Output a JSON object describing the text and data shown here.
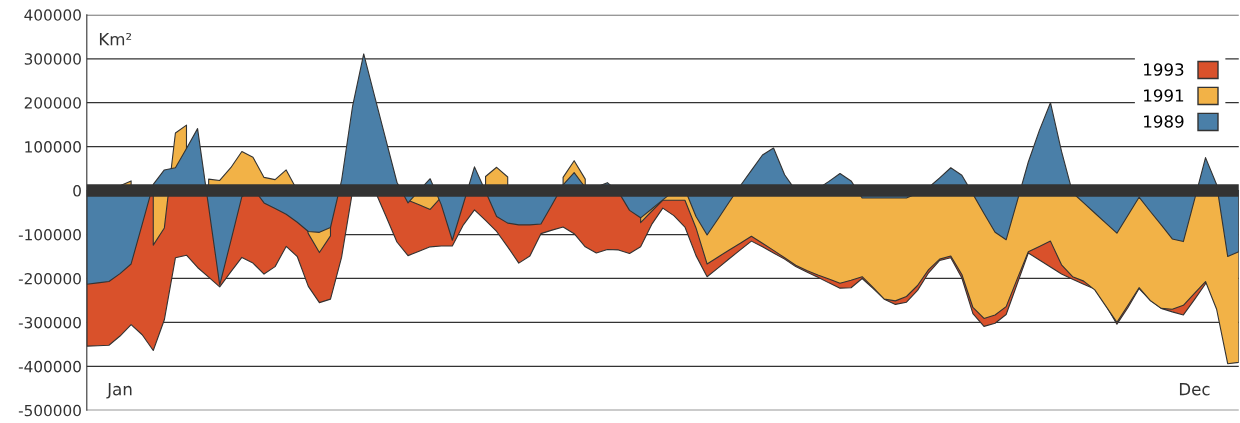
{
  "chart_data": {
    "type": "area",
    "ylabel": "Km²",
    "categories": [
      null,
      null,
      null,
      "Jan",
      null,
      null,
      null,
      null,
      null,
      null,
      null,
      null,
      null,
      null,
      null,
      null,
      null,
      null,
      null,
      null,
      null,
      null,
      null,
      null,
      null,
      null,
      null,
      null,
      null,
      null,
      null,
      null,
      null,
      null,
      null,
      null,
      null,
      null,
      null,
      null,
      null,
      null,
      null,
      null,
      null,
      null,
      null,
      null,
      null,
      null,
      null,
      null,
      null,
      null,
      null,
      null,
      null,
      null,
      null,
      null,
      null,
      null,
      null,
      null,
      null,
      null,
      null,
      null,
      null,
      null,
      null,
      null,
      null,
      null,
      null,
      null,
      null,
      null,
      null,
      null,
      null,
      null,
      null,
      null,
      null,
      null,
      null,
      null,
      null,
      null,
      null,
      null,
      null,
      null,
      null,
      null,
      null,
      null,
      null,
      null,
      "Dec",
      null,
      null,
      null,
      null
    ],
    "series": [
      {
        "name": "1993",
        "color": "#d9512b",
        "values": [
          -354000,
          -353000,
          -352000,
          -331000,
          -305000,
          -328000,
          -364000,
          -294000,
          -153000,
          -147000,
          -175000,
          -197000,
          -219000,
          -185000,
          -152000,
          -165000,
          -190000,
          -173000,
          -127000,
          -150000,
          -218000,
          -255000,
          -247000,
          -152000,
          0,
          0,
          0,
          -58000,
          -117000,
          -148000,
          -138000,
          -128000,
          -126000,
          -126000,
          -78000,
          -44000,
          -68000,
          -93000,
          -128000,
          -165000,
          -149000,
          -98000,
          -90000,
          -83000,
          -98000,
          -128000,
          -142000,
          -134000,
          -135000,
          -143000,
          -128000,
          -77000,
          -40000,
          -57000,
          -83000,
          -148000,
          -196000,
          -176000,
          -155000,
          -135000,
          -115000,
          -128000,
          -142000,
          -156000,
          -173000,
          -185000,
          -197000,
          -210000,
          -222000,
          -221000,
          -200000,
          -223000,
          -247000,
          -259000,
          -254000,
          -227000,
          -187000,
          -159000,
          -153000,
          -199000,
          -280000,
          -309000,
          -302000,
          -282000,
          -212000,
          -142000,
          -158000,
          -174000,
          -190000,
          -202000,
          -213000,
          -224000,
          -261000,
          -304000,
          -266000,
          -223000,
          -249000,
          -268000,
          -276000,
          -283000,
          -248000,
          -212000,
          null,
          null,
          null
        ]
      },
      {
        "name": "1991",
        "color": "#f2b247",
        "values": [
          null,
          null,
          null,
          11000,
          22000,
          null,
          -124000,
          -85000,
          131000,
          149000,
          null,
          26000,
          23000,
          52000,
          89000,
          76000,
          30000,
          25000,
          47000,
          0,
          -98000,
          -141000,
          -103000,
          null,
          null,
          null,
          null,
          null,
          null,
          -22000,
          -32000,
          -43000,
          -15000,
          null,
          null,
          null,
          32000,
          53000,
          31000,
          null,
          null,
          null,
          null,
          30000,
          68000,
          26000,
          null,
          null,
          null,
          null,
          -73000,
          -47000,
          -22000,
          -22000,
          -22000,
          -85000,
          -167000,
          -151000,
          -135000,
          -120000,
          -104000,
          -120000,
          -136000,
          -153000,
          -170000,
          -182000,
          -192000,
          -201000,
          -211000,
          -204000,
          -196000,
          -221000,
          -247000,
          -251000,
          -241000,
          -216000,
          -180000,
          -156000,
          -149000,
          -191000,
          -266000,
          -291000,
          -283000,
          -264000,
          -201000,
          -139000,
          -127000,
          -115000,
          -169000,
          -196000,
          -206000,
          -226000,
          -263000,
          -300000,
          -261000,
          -221000,
          -250000,
          -268000,
          -270000,
          -261000,
          -234000,
          -207000,
          -270000,
          -394000,
          -391000
        ]
      },
      {
        "name": "1989",
        "color": "#4a7fa8",
        "values": [
          -213000,
          -210000,
          -207000,
          -189000,
          -167000,
          -77000,
          14000,
          47000,
          52000,
          96000,
          141000,
          -37000,
          -215000,
          -115000,
          -14000,
          6000,
          -28000,
          -41000,
          -54000,
          -72000,
          -93000,
          -95000,
          -84000,
          23000,
          193000,
          311000,
          213000,
          116000,
          19000,
          -28000,
          0,
          27000,
          -32000,
          -113000,
          -30000,
          54000,
          -2000,
          -59000,
          -74000,
          -78000,
          -78000,
          -76000,
          -32000,
          13000,
          41000,
          7000,
          8000,
          18000,
          -3000,
          -45000,
          -62000,
          -42000,
          -21000,
          -1000,
          3000,
          -59000,
          -101000,
          -64000,
          -26000,
          11000,
          46000,
          81000,
          97000,
          36000,
          0,
          0,
          4000,
          21000,
          39000,
          22000,
          -17000,
          -17000,
          -17000,
          -17000,
          -17000,
          -6000,
          7000,
          29000,
          52000,
          35000,
          -8000,
          -52000,
          -95000,
          -112000,
          -24000,
          65000,
          137000,
          200000,
          89000,
          -5000,
          -28000,
          -51000,
          -74000,
          -97000,
          -56000,
          -15000,
          -47000,
          -78000,
          -110000,
          -116000,
          -21000,
          75000,
          14000,
          -150000,
          -139000
        ]
      }
    ],
    "ylim": [
      -500000,
      400000
    ],
    "yticks": [
      -500000,
      -400000,
      -300000,
      -200000,
      -100000,
      0,
      100000,
      200000,
      300000,
      400000
    ],
    "ref_lines": [
      {
        "axis": "y",
        "value": 0,
        "color": "#333333"
      }
    ],
    "grid": "y",
    "legend": "top right"
  }
}
